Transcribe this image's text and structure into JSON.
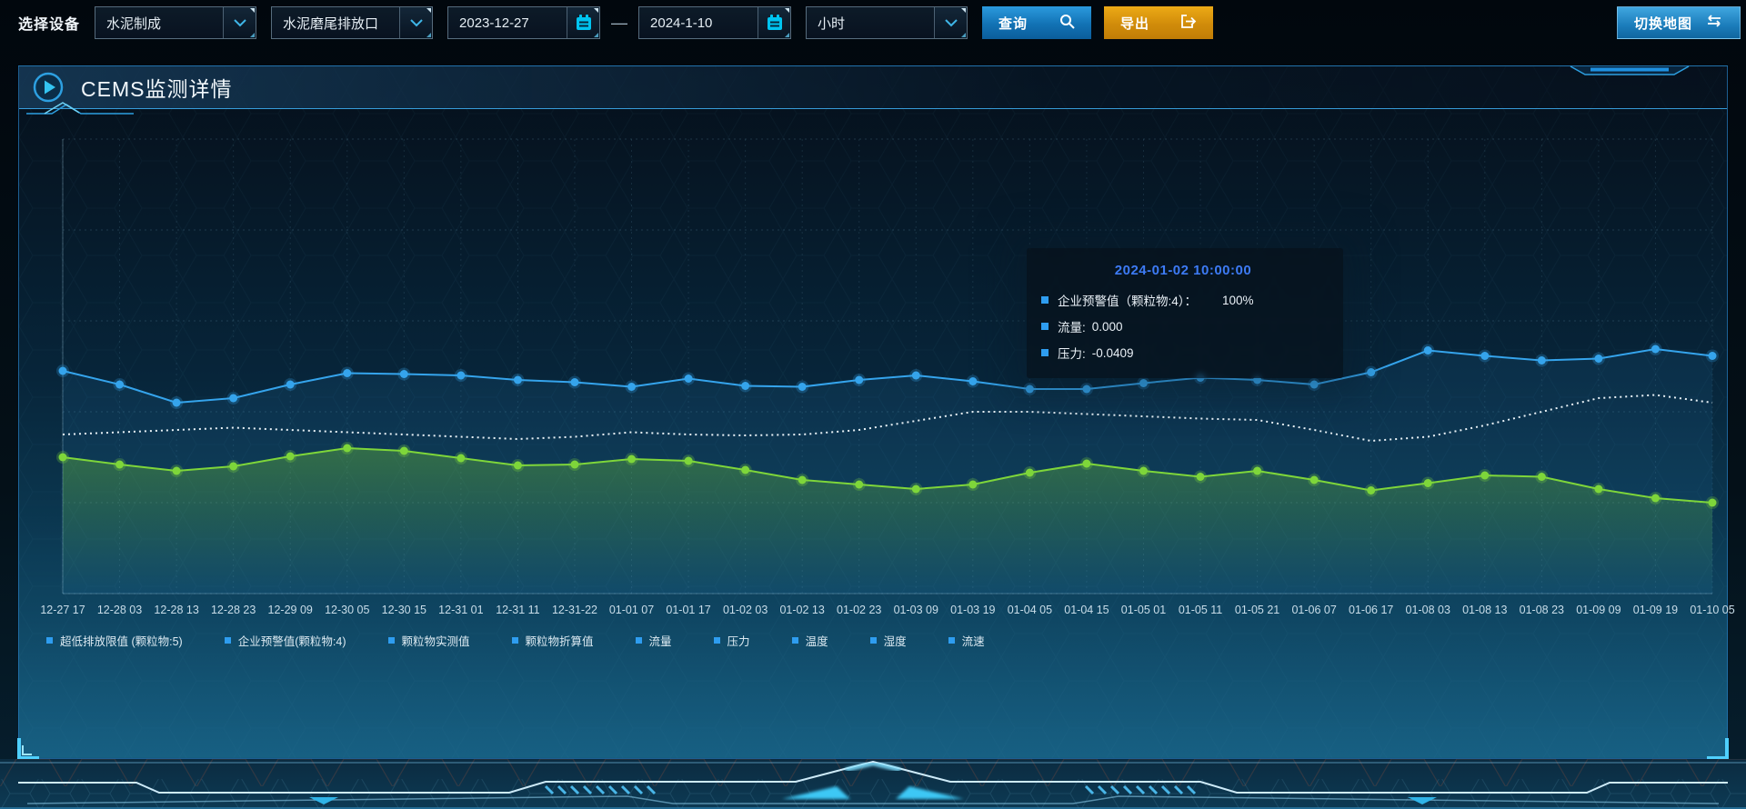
{
  "toolbar": {
    "device_label": "选择设备",
    "device_select": {
      "value": "水泥制成"
    },
    "outlet_select": {
      "value": "水泥磨尾排放口"
    },
    "date_start": "2023-12-27",
    "date_separator": "—",
    "date_end": "2024-1-10",
    "interval_select": {
      "value": "小时"
    },
    "query_label": "查询",
    "export_label": "导出",
    "switch_map_label": "切换地图"
  },
  "panel": {
    "title": "CEMS监测详情"
  },
  "tooltip": {
    "title": "2024-01-02 10:00:00",
    "items": [
      {
        "label": "企业预警值（颗粒物:4）：",
        "value": "100%"
      },
      {
        "label": "流量:",
        "value": "0.000"
      },
      {
        "label": "压力:",
        "value": "-0.0409"
      }
    ]
  },
  "legend_items": [
    "超低排放限值 (颗粒物:5)",
    "企业预警值(颗粒物:4)",
    "颗粒物实测值",
    "颗粒物折算值",
    "流量",
    "压力",
    "温度",
    "湿度",
    "流速"
  ],
  "colors": {
    "accent": "#2aa0e0",
    "tooltip_title": "#3d7bf5",
    "legend_marker": "#2e9df0",
    "query_button": "#1272b4",
    "export_button": "#d18c0a",
    "blue_line": "#35a4ec",
    "white_line": "#e9f2f7",
    "green_line": "#7ed63a"
  },
  "chart_data": {
    "type": "line",
    "title": "",
    "xlabel": "",
    "ylabel": "",
    "ylim": [
      0,
      100
    ],
    "grid": true,
    "legend_position": "bottom",
    "categories": [
      "12-27 17",
      "12-28 03",
      "12-28 13",
      "12-28 23",
      "12-29 09",
      "12-30 05",
      "12-30 15",
      "12-31 01",
      "12-31 11",
      "12-31-22",
      "01-01 07",
      "01-01 17",
      "01-02 03",
      "01-02 13",
      "01-02 23",
      "01-03 09",
      "01-03 19",
      "01-04 05",
      "01-04 15",
      "01-05 01",
      "01-05 11",
      "01-05 21",
      "01-06 07",
      "01-06 17",
      "01-08 03",
      "01-08 13",
      "01-08 23",
      "01-09 09",
      "01-09 19",
      "01-10 05"
    ],
    "series": [
      {
        "name": "企业预警值(颗粒物:4)",
        "color": "#35a4ec",
        "marker": true,
        "dashed": false,
        "area": "rgba(45,150,220,0.10)",
        "values": [
          49,
          46,
          42,
          43,
          46,
          48.5,
          48.3,
          48,
          47,
          46.5,
          45.5,
          47.3,
          45.7,
          45.5,
          47,
          48,
          46.7,
          45,
          45,
          46.3,
          47.5,
          47,
          46,
          48.7,
          53.5,
          52.3,
          51.3,
          51.7,
          53.8,
          52.3
        ]
      },
      {
        "name": "流量",
        "color": "#e9f2f7",
        "marker": false,
        "dashed": true,
        "area": null,
        "values": [
          35,
          35.5,
          36,
          36.5,
          36,
          35.5,
          35,
          34.5,
          34,
          34.5,
          35.5,
          35,
          34.8,
          35,
          36,
          38,
          40,
          40,
          39.5,
          39,
          38.5,
          38.2,
          36,
          33.6,
          34.5,
          37,
          40,
          43,
          43.7,
          42
        ]
      },
      {
        "name": "压力",
        "color": "#7ed63a",
        "marker": true,
        "dashed": false,
        "area": "gradient-green",
        "values": [
          30,
          28.4,
          27,
          28,
          30.2,
          32,
          31.4,
          29.8,
          28.2,
          28.4,
          29.6,
          29.2,
          27.2,
          25,
          24,
          23,
          24,
          26.6,
          28.6,
          27,
          25.7,
          27,
          25,
          22.7,
          24.3,
          26,
          25.7,
          23,
          21,
          20
        ]
      }
    ]
  }
}
